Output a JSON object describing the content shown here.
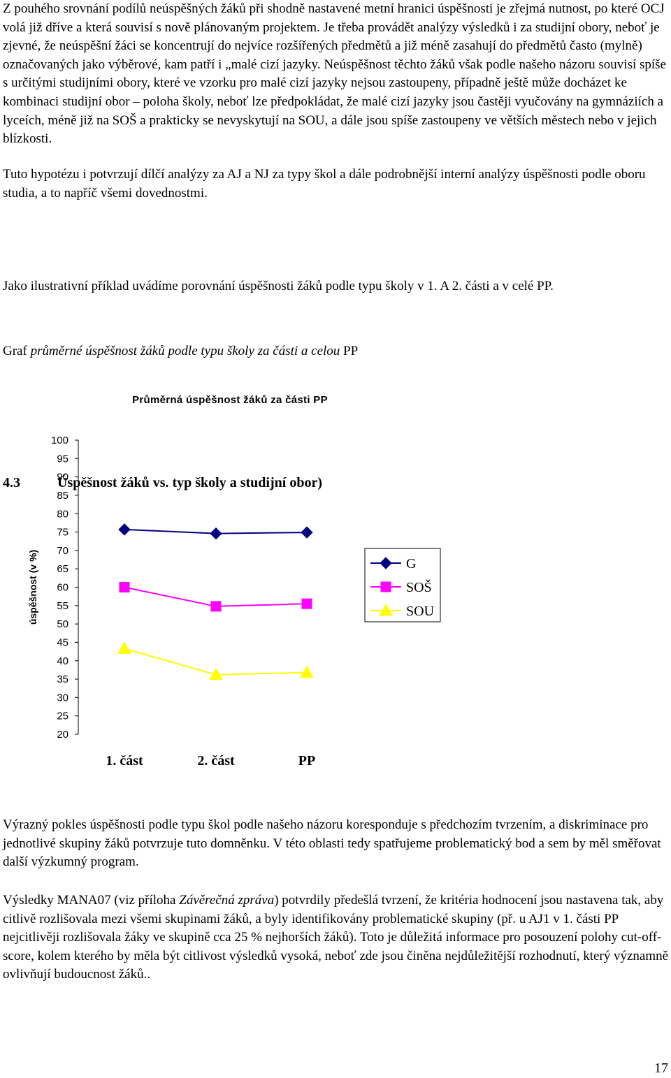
{
  "intro": {
    "p1": "Z pouhého srovnání podílů neúspěšných žáků při shodně nastavené metní hranici úspěšnosti je zřejmá nutnost, po které OCJ volá již dříve a která souvisí s nově plánovaným projektem. Je třeba provádět analýzy výsledků i za studijní obory, neboť je zjevné, že neúspěšní žáci se koncentrují do nejvíce rozšířených předmětů a již méně zasahují do předmětů často (mylně) označovaných jako výběrové, kam patří i „malé cizí jazyky. Neúspěšnost těchto žáků však podle našeho názoru souvisí spíše s určitými studijními obory, které ve vzorku pro malé cizí jazyky nejsou zastoupeny, případně ještě může docházet ke kombinaci studijní obor – poloha školy, neboť lze předpokládat, že malé cizí jazyky jsou častěji vyučovány na gymnáziích a lyceích, méně již na SOŠ a prakticky se nevyskytují na SOU, a dále jsou spíše zastoupeny ve větších městech nebo v jejich blízkosti.",
    "p2": "Tuto hypotézu i potvrzují dílčí analýzy za AJ a NJ za typy škol a dále podrobnější interní analýzy úspěšnosti podle oboru studia, a to napříč všemi dovednostmi."
  },
  "section": {
    "number": "4.3",
    "title": "Úspěšnost žáků vs. typ školy a studijní obor)",
    "lead": "Jako ilustrativní příklad uvádíme porovnání úspěšnosti žáků podle typu školy v 1. A 2. části a v celé PP.",
    "graph_caption_start": "Graf ",
    "graph_caption_italic": "průměrné úspěšnost žáků podle typu školy za části a celou",
    "graph_caption_end": " PP"
  },
  "chart_data": {
    "type": "line",
    "title": "Průměrná úspěšnost žáků za části PP",
    "ylabel": "úspěšnost (v %)",
    "xlabel": "",
    "categories": [
      "1. část",
      "2. část",
      "PP"
    ],
    "ylim": [
      20,
      100
    ],
    "yticks": [
      100,
      95,
      90,
      85,
      80,
      75,
      70,
      65,
      60,
      55,
      50,
      45,
      40,
      35,
      30,
      25,
      20
    ],
    "legend_position": "right",
    "series": [
      {
        "name": "G",
        "values": [
          75.7,
          74.6,
          74.9
        ],
        "color": "#000080",
        "marker": "diamond"
      },
      {
        "name": "SOŠ",
        "values": [
          60.0,
          54.8,
          55.5
        ],
        "color": "#ff00ff",
        "marker": "square"
      },
      {
        "name": "SOU",
        "values": [
          43.3,
          36.2,
          36.8
        ],
        "color": "#ffff00",
        "marker": "triangle"
      }
    ]
  },
  "after": {
    "p1": "Výrazný pokles úspěšnosti podle typu škol podle našeho názoru koresponduje s předchozím tvrzením, a diskriminace pro jednotlivé skupiny žáků potvrzuje tuto domněnku. V této oblasti tedy spatřujeme problematický bod a sem by měl směřovat další výzkumný program.",
    "p2_start": "Výsledky MANA07 (viz příloha ",
    "p2_italic": "Závěrečná zpráva",
    "p2_end": ") potvrdily předešlá tvrzení, že kritéria hodnocení jsou nastavena tak, aby citlivě rozlišovala mezi všemi skupinami žáků, a byly identifikovány problematické skupiny (př. u AJ1 v 1. části PP nejcitlivěji rozlišovala žáky ve skupině cca 25 % nejhorších žáků). Toto je důležitá informace pro posouzení polohy cut-off-score, kolem kterého by měla být citlivost výsledků vysoká, neboť zde jsou činěna nejdůležitější rozhodnutí, který významně ovlivňují budoucnost žáků.."
  },
  "page_number": "17"
}
